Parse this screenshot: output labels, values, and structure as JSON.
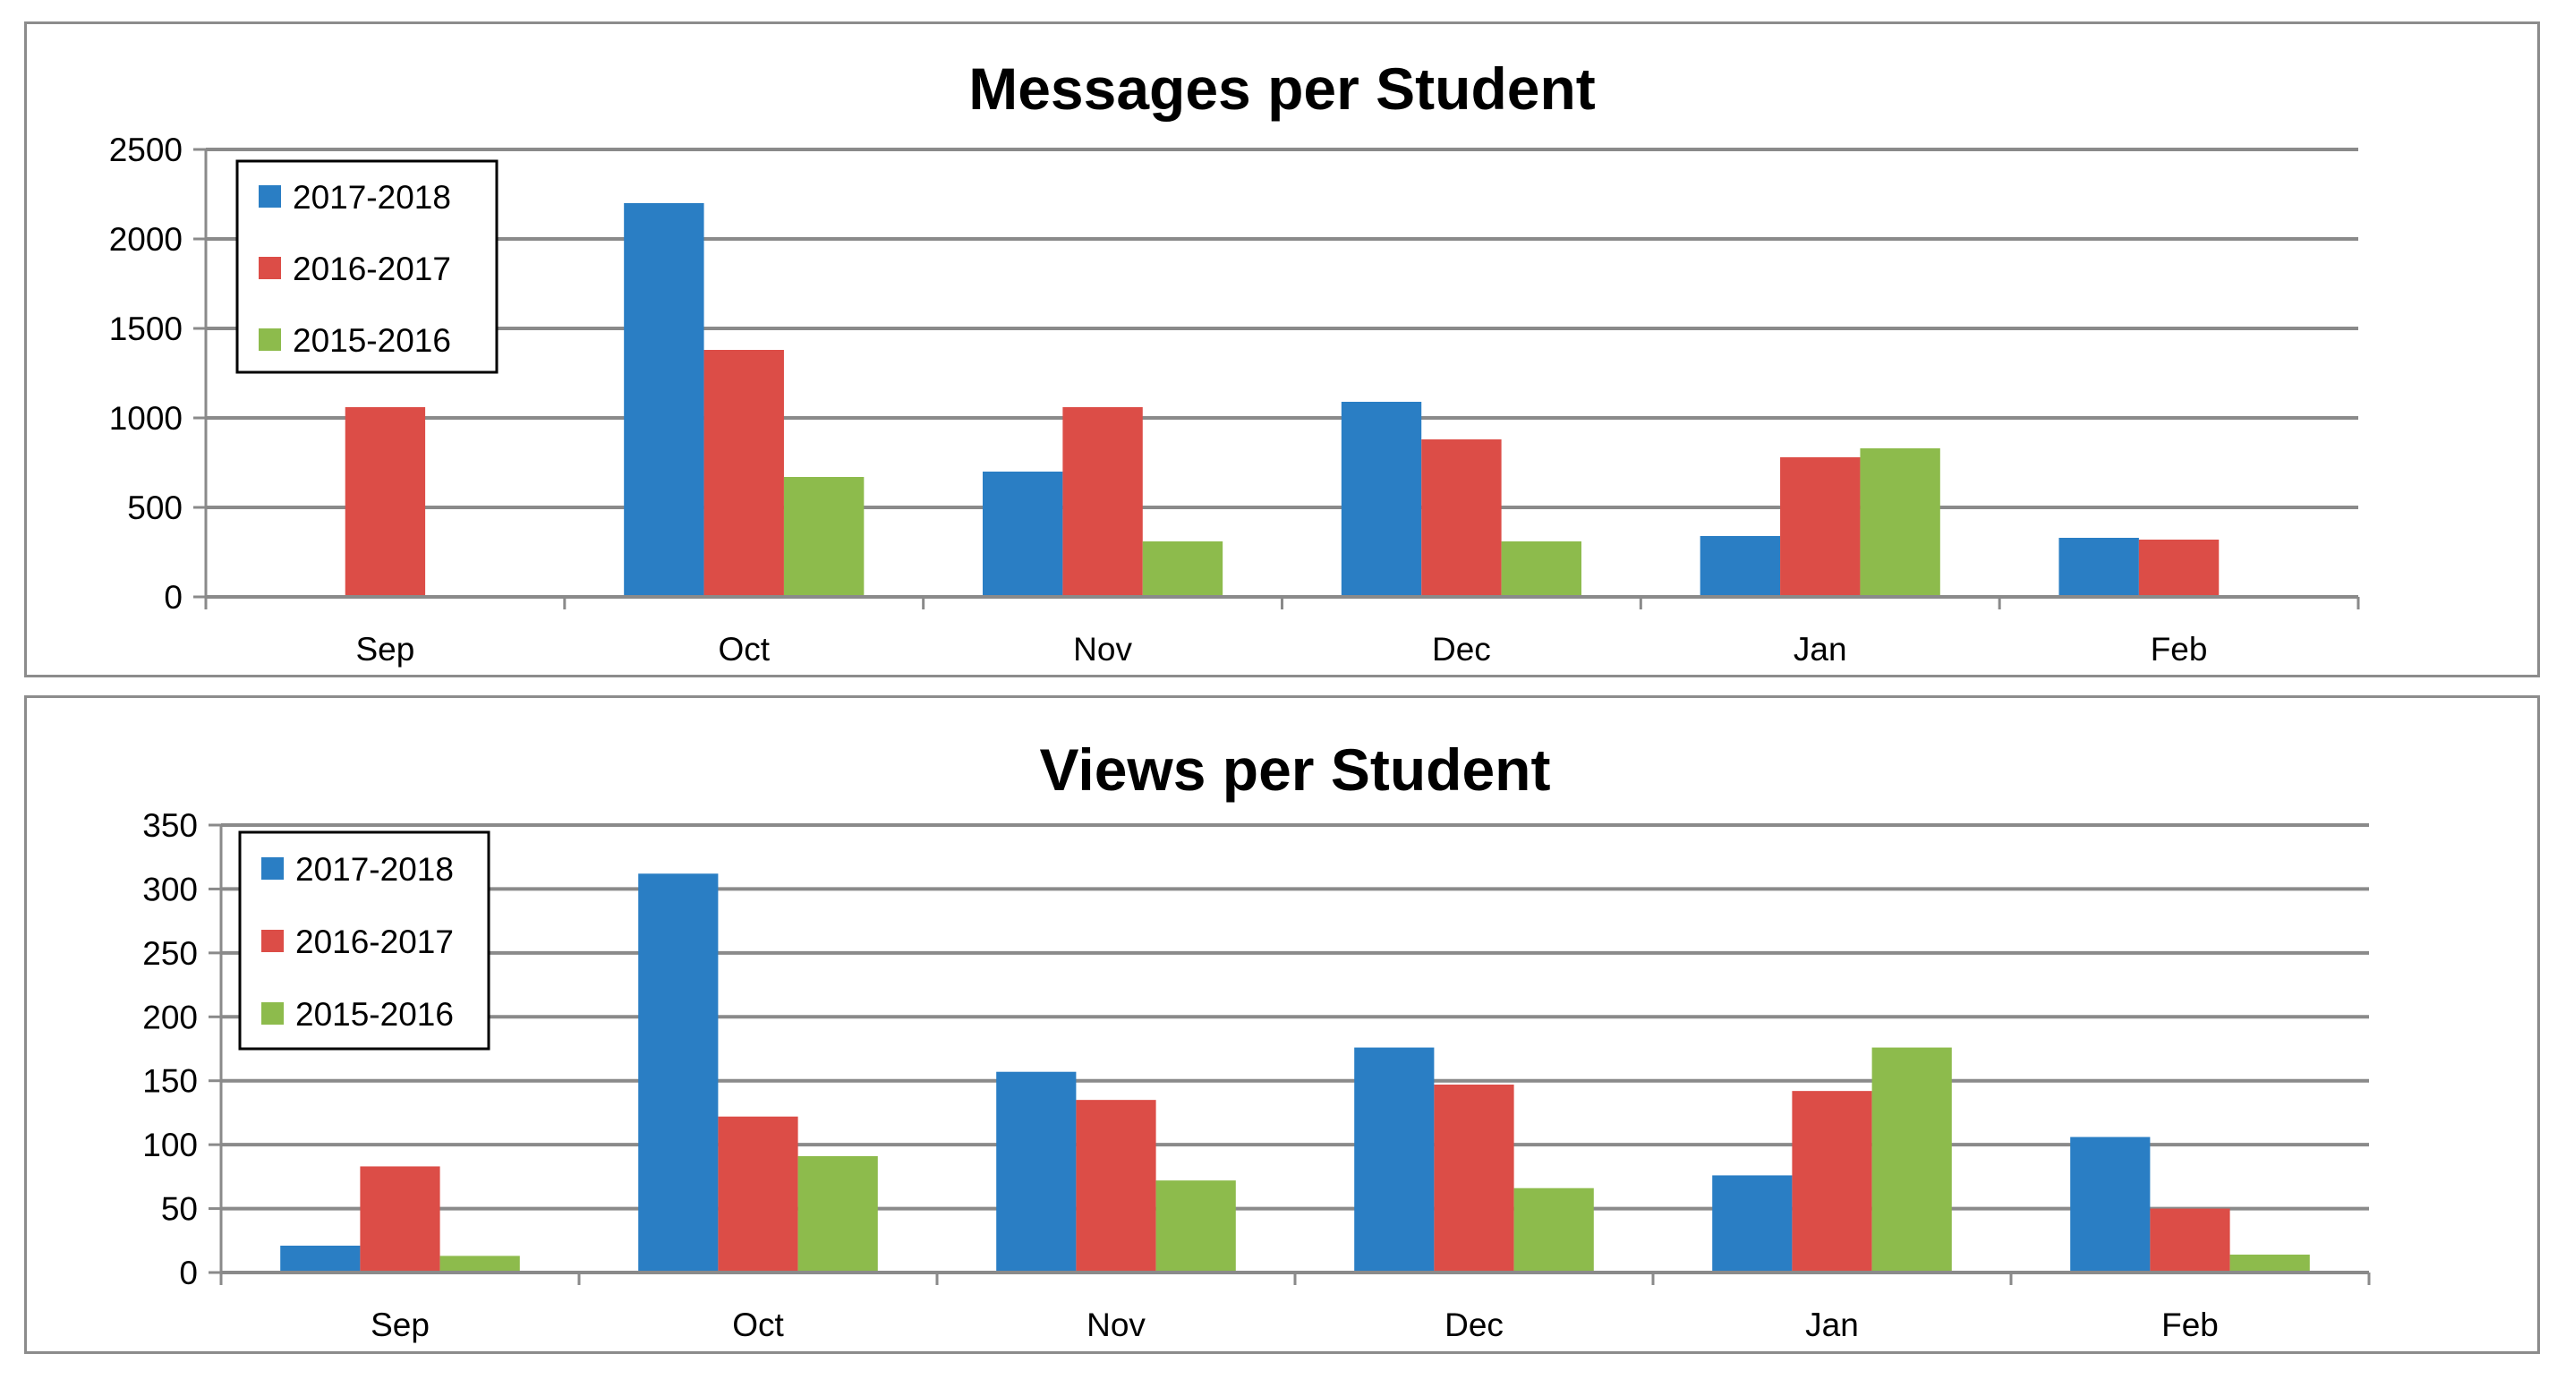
{
  "colors": {
    "2017-2018": "#2a7ec4",
    "2016-2017": "#dc4d47",
    "2015-2016": "#8dbb4c",
    "grid": "#8a8a8a",
    "axis": "#8a8a8a"
  },
  "chart_data": [
    {
      "type": "bar",
      "title": "Messages per Student",
      "xlabel": "",
      "ylabel": "",
      "categories": [
        "Sep",
        "Oct",
        "Nov",
        "Dec",
        "Jan",
        "Feb"
      ],
      "series": [
        {
          "name": "2017-2018",
          "values": [
            10,
            2200,
            700,
            1090,
            340,
            330
          ]
        },
        {
          "name": "2016-2017",
          "values": [
            1060,
            1380,
            1060,
            880,
            780,
            320
          ]
        },
        {
          "name": "2015-2016",
          "values": [
            10,
            670,
            310,
            310,
            830,
            0
          ]
        }
      ],
      "ylim": [
        0,
        2500
      ],
      "yticks": [
        "0",
        "500",
        "1000",
        "1500",
        "2000",
        "2500"
      ],
      "ytick_values": [
        0,
        500,
        1000,
        1500,
        2000,
        2500
      ],
      "grid": true,
      "legend": "top-left"
    },
    {
      "type": "bar",
      "title": "Views per Student",
      "xlabel": "",
      "ylabel": "",
      "categories": [
        "Sep",
        "Oct",
        "Nov",
        "Dec",
        "Jan",
        "Feb"
      ],
      "series": [
        {
          "name": "2017-2018",
          "values": [
            21,
            312,
            157,
            176,
            76,
            106
          ]
        },
        {
          "name": "2016-2017",
          "values": [
            83,
            122,
            135,
            147,
            142,
            50
          ]
        },
        {
          "name": "2015-2016",
          "values": [
            13,
            91,
            72,
            66,
            176,
            14
          ]
        }
      ],
      "ylim": [
        0,
        350
      ],
      "yticks": [
        "0",
        "50",
        "100",
        "150",
        "200",
        "250",
        "300",
        "350"
      ],
      "ytick_values": [
        0,
        50,
        100,
        150,
        200,
        250,
        300,
        350
      ],
      "grid": true,
      "legend": "top-left"
    }
  ]
}
